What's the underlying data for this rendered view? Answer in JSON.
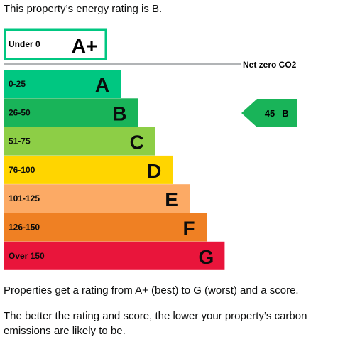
{
  "intro_text": "This property’s energy rating is B.",
  "chart_data": {
    "type": "bar",
    "categories": [
      "Under 0",
      "0-25",
      "26-50",
      "51-75",
      "76-100",
      "101-125",
      "126-150",
      "Over 150"
    ],
    "letters": [
      "A+",
      "A",
      "B",
      "C",
      "D",
      "E",
      "F",
      "G"
    ],
    "band_colors": [
      "#ffffff",
      "#00c781",
      "#19b459",
      "#8dce46",
      "#ffd500",
      "#fcaa65",
      "#ef8023",
      "#e9153b"
    ],
    "highlight_band_border": "#00c781",
    "net_zero_label": "Net zero CO2",
    "net_zero_line_color": "#b1b4b6",
    "current_rating": {
      "score": "45",
      "letter": "B",
      "color": "#19b459"
    }
  },
  "footer": {
    "paragraph_1": "Properties get a rating from A+ (best) to G (worst) and a score.",
    "paragraph_2": "The better the rating and score, the lower your property’s carbon emissions are likely to be."
  }
}
